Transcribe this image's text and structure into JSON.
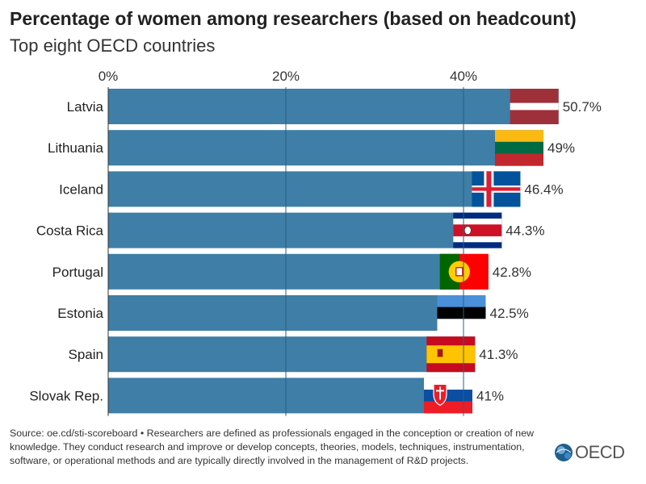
{
  "chart_data": {
    "type": "bar",
    "orientation": "horizontal",
    "title": "Percentage of women among researchers (based on headcount)",
    "subtitle": "Top eight OECD countries",
    "categories": [
      "Latvia",
      "Lithuania",
      "Iceland",
      "Costa Rica",
      "Portugal",
      "Estonia",
      "Spain",
      "Slovak Rep."
    ],
    "values": [
      50.7,
      49,
      46.4,
      44.3,
      42.8,
      42.5,
      41.3,
      41
    ],
    "value_labels": [
      "50.7%",
      "49%",
      "46.4%",
      "44.3%",
      "42.8%",
      "42.5%",
      "41.3%",
      "41%"
    ],
    "x_ticks": [
      0,
      20,
      40
    ],
    "x_tick_labels": [
      "0%",
      "20%",
      "40%"
    ],
    "xlim": [
      0,
      60
    ],
    "xlabel": "",
    "ylabel": "",
    "grid": true,
    "legend": "none",
    "bar_color": "#3f7ea6",
    "flags": [
      "latvia-flag",
      "lithuania-flag",
      "iceland-flag",
      "costa-rica-flag",
      "portugal-flag",
      "estonia-flag",
      "spain-flag",
      "slovakia-flag"
    ]
  },
  "footer": {
    "source": "Source: oe.cd/sti-scoreboard • Researchers are defined as professionals engaged in the conception or creation of new knowledge. They conduct research and improve or develop concepts, theories, models, techniques, instrumentation, software, or operational methods and are typically directly involved in the management of R&D projects."
  },
  "logo": {
    "text": "OECD"
  }
}
